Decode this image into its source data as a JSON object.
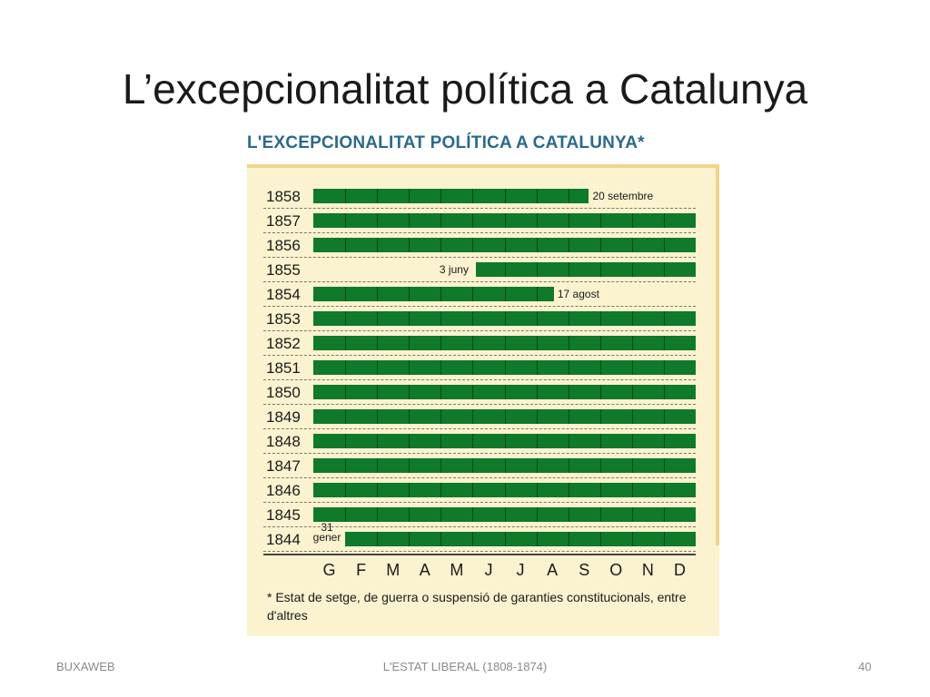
{
  "slide": {
    "title": "L’excepcionalitat política a Catalunya",
    "footer_left": "BUXAWEB",
    "footer_center": "L'ESTAT LIBERAL (1808-1874)",
    "page_number": "40"
  },
  "chart_data": {
    "type": "bar",
    "title": "L'EXCEPCIONALITAT POLÍTICA A CATALUNYA*",
    "months": [
      "G",
      "F",
      "M",
      "A",
      "M",
      "J",
      "J",
      "A",
      "S",
      "O",
      "N",
      "D"
    ],
    "series": [
      {
        "year": "1858",
        "start": 0,
        "end": 8.65,
        "annotation": "20 setembre",
        "annotation_side": "right"
      },
      {
        "year": "1857",
        "start": 0,
        "end": 12,
        "annotation": "",
        "annotation_side": ""
      },
      {
        "year": "1856",
        "start": 0,
        "end": 12,
        "annotation": "",
        "annotation_side": ""
      },
      {
        "year": "1855",
        "start": 5.1,
        "end": 12,
        "annotation": "3 juny",
        "annotation_side": "left"
      },
      {
        "year": "1854",
        "start": 0,
        "end": 7.55,
        "annotation": "17 agost",
        "annotation_side": "right"
      },
      {
        "year": "1853",
        "start": 0,
        "end": 12,
        "annotation": "",
        "annotation_side": ""
      },
      {
        "year": "1852",
        "start": 0,
        "end": 12,
        "annotation": "",
        "annotation_side": ""
      },
      {
        "year": "1851",
        "start": 0,
        "end": 12,
        "annotation": "",
        "annotation_side": ""
      },
      {
        "year": "1850",
        "start": 0,
        "end": 12,
        "annotation": "",
        "annotation_side": ""
      },
      {
        "year": "1849",
        "start": 0,
        "end": 12,
        "annotation": "",
        "annotation_side": ""
      },
      {
        "year": "1848",
        "start": 0,
        "end": 12,
        "annotation": "",
        "annotation_side": ""
      },
      {
        "year": "1847",
        "start": 0,
        "end": 12,
        "annotation": "",
        "annotation_side": ""
      },
      {
        "year": "1846",
        "start": 0,
        "end": 12,
        "annotation": "",
        "annotation_side": ""
      },
      {
        "year": "1845",
        "start": 0,
        "end": 12,
        "annotation": "",
        "annotation_side": ""
      },
      {
        "year": "1844",
        "start": 1.0,
        "end": 12,
        "annotation": "31 gener",
        "annotation_side": "left"
      }
    ],
    "footnote": "* Estat de setge, de guerra o suspensió de garanties constitucionals, entre d'altres",
    "colors": {
      "bar": "#0f7a2a",
      "background": "#fbf2cf"
    }
  }
}
